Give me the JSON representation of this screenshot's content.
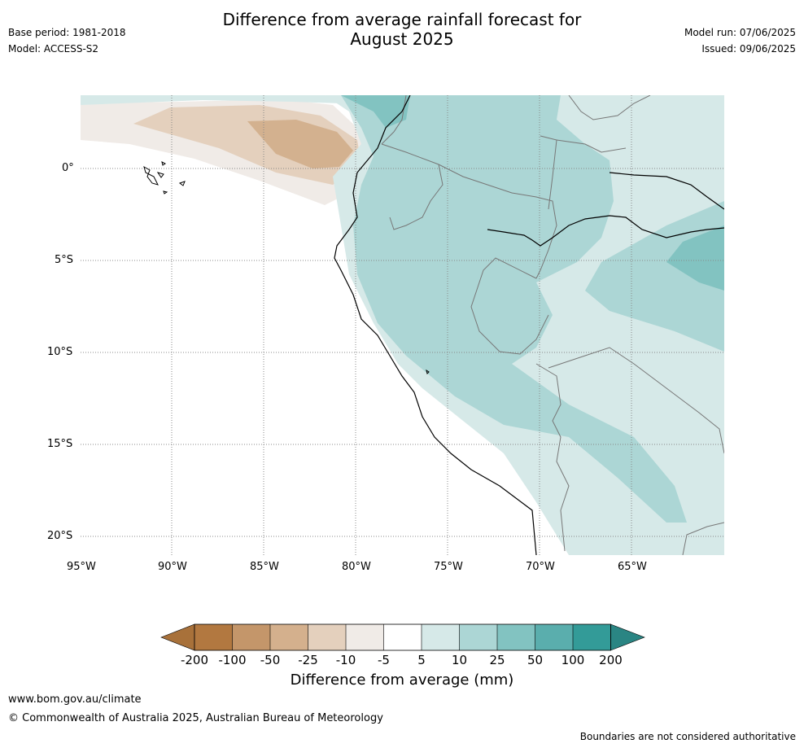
{
  "title": {
    "line1": "Difference from average rainfall forecast for",
    "line2": "August 2025"
  },
  "meta": {
    "base_period": "Base period: 1981-2018",
    "model": "Model: ACCESS-S2",
    "model_run": "Model run: 07/06/2025",
    "issued": "Issued: 09/06/2025"
  },
  "map": {
    "lat_labels": [
      "0°",
      "5°S",
      "10°S",
      "15°S",
      "20°S"
    ],
    "lon_labels": [
      "95°W",
      "90°W",
      "85°W",
      "80°W",
      "75°W",
      "70°W",
      "65°W"
    ],
    "colors": {
      "dry_strong": "#c49a6c",
      "dry_mid": "#d3b18f",
      "dry_light": "#e4d0bd",
      "dry_faint": "#f0ebe7",
      "wet_faint": "#d6e9e8",
      "wet_light": "#acd6d5",
      "wet_mid": "#82c3c1",
      "coast": "#000000",
      "border": "#777777",
      "grid": "#888888"
    }
  },
  "colorbar": {
    "title": "Difference from average (mm)",
    "ticks": [
      "-200",
      "-100",
      "-50",
      "-25",
      "-10",
      "-5",
      "5",
      "10",
      "25",
      "50",
      "100",
      "200"
    ],
    "colors": [
      "#a8713a",
      "#b27840",
      "#c4966a",
      "#d4b08d",
      "#e4d0bd",
      "#f0ebe7",
      "#ffffff",
      "#d6e9e8",
      "#acd6d5",
      "#82c3c1",
      "#5aaead",
      "#339b98",
      "#2a8583"
    ]
  },
  "footer": {
    "url": "www.bom.gov.au/climate",
    "copyright": "© Commonwealth of Australia 2025, Australian Bureau of Meteorology",
    "note": "Boundaries are not considered authoritative"
  }
}
